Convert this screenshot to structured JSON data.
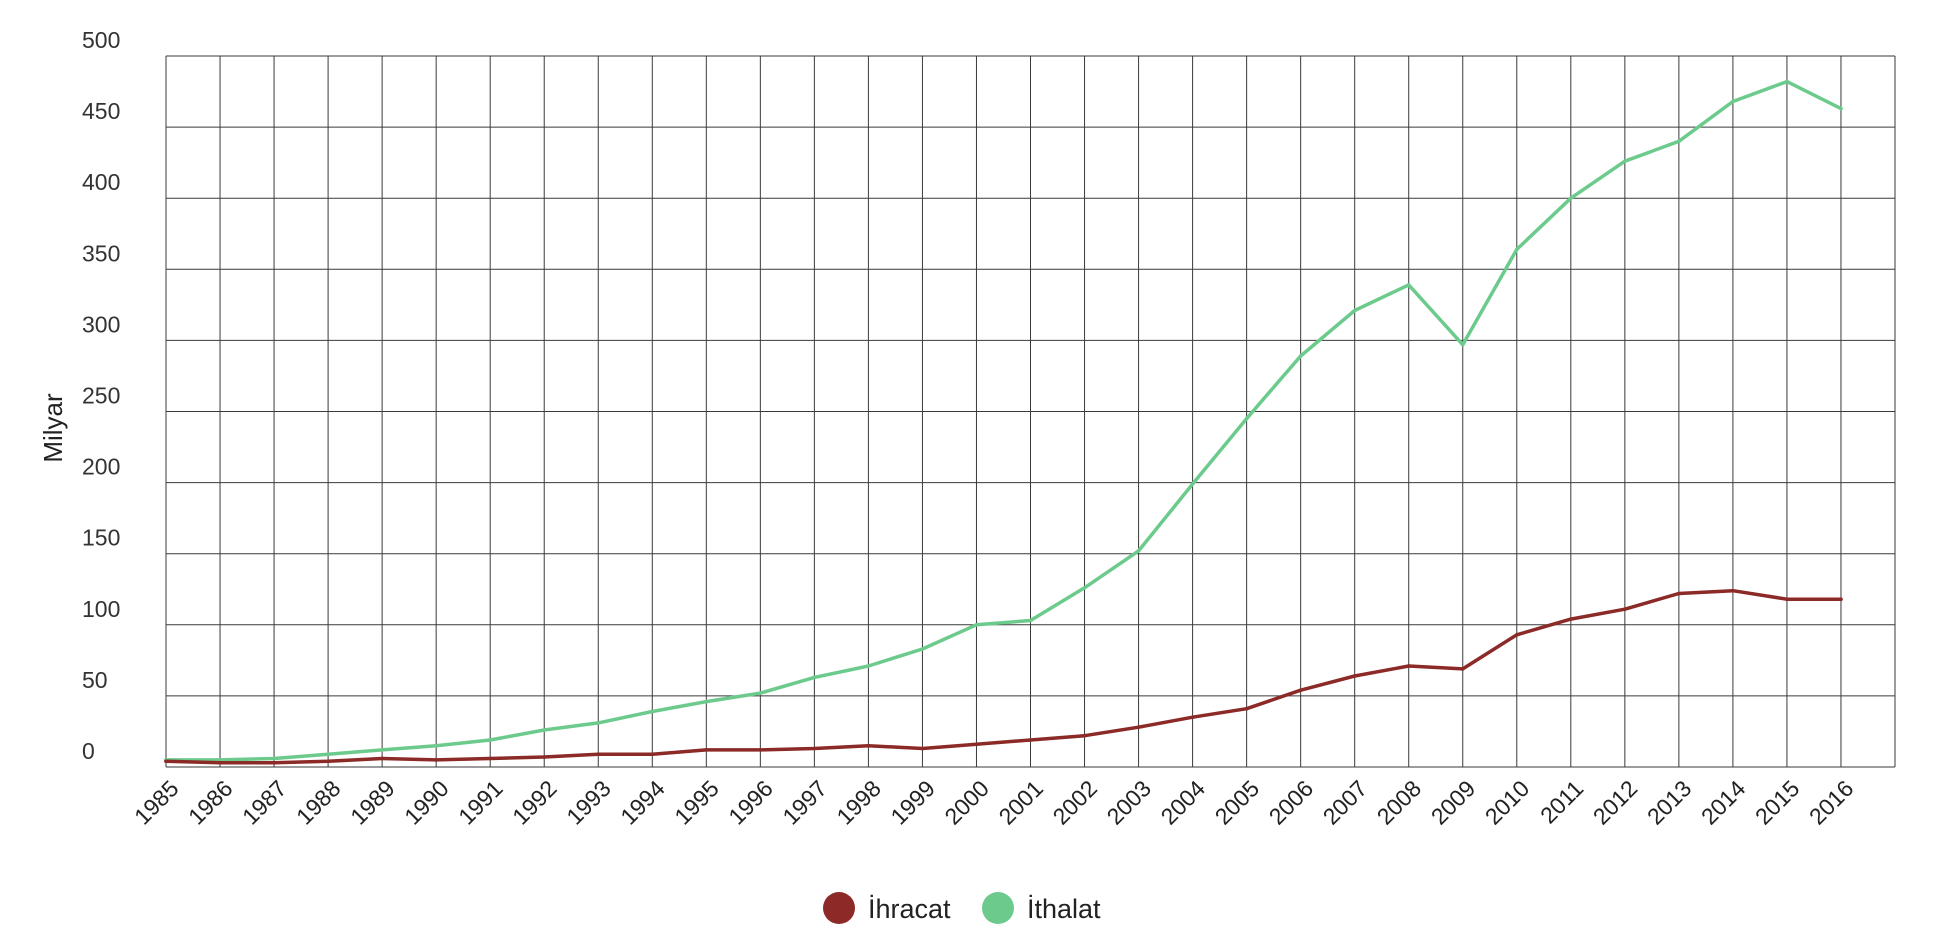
{
  "chart_data": {
    "type": "line",
    "title": "",
    "xlabel": "",
    "ylabel": "Milyar",
    "ylim": [
      0,
      500
    ],
    "yticks": [
      0,
      50,
      100,
      150,
      200,
      250,
      300,
      350,
      400,
      450,
      500
    ],
    "grid": true,
    "legend_position": "bottom-center",
    "categories": [
      "1985",
      "1986",
      "1987",
      "1988",
      "1989",
      "1990",
      "1991",
      "1992",
      "1993",
      "1994",
      "1995",
      "1996",
      "1997",
      "1998",
      "1999",
      "2000",
      "2001",
      "2002",
      "2003",
      "2004",
      "2005",
      "2006",
      "2007",
      "2008",
      "2009",
      "2010",
      "2011",
      "2012",
      "2013",
      "2014",
      "2015",
      "2016"
    ],
    "series": [
      {
        "name": "İhracat",
        "color": "#8b2a26",
        "values": [
          4,
          3,
          3,
          4,
          6,
          5,
          6,
          7,
          9,
          9,
          12,
          12,
          13,
          15,
          13,
          16,
          19,
          22,
          28,
          35,
          41,
          54,
          64,
          71,
          69,
          93,
          104,
          111,
          122,
          124,
          118,
          118
        ]
      },
      {
        "name": "İthalat",
        "color": "#6ccb8c",
        "values": [
          5,
          5,
          6,
          9,
          12,
          15,
          19,
          26,
          31,
          39,
          46,
          52,
          63,
          71,
          83,
          100,
          103,
          126,
          152,
          199,
          245,
          289,
          321,
          339,
          297,
          364,
          400,
          426,
          440,
          468,
          482,
          463
        ]
      }
    ]
  }
}
